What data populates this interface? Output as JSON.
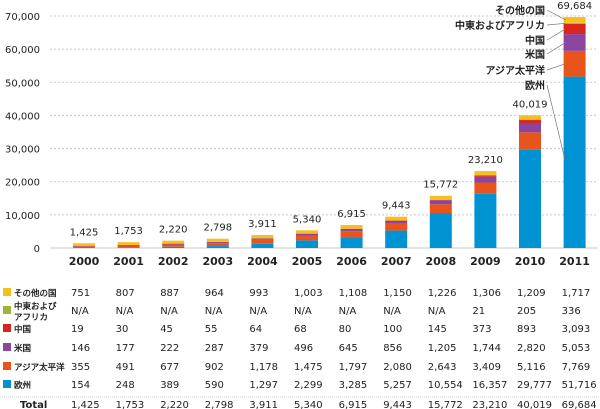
{
  "chart_data": {
    "type": "bar",
    "stacked": true,
    "categories": [
      "2000",
      "2001",
      "2002",
      "2003",
      "2004",
      "2005",
      "2006",
      "2007",
      "2008",
      "2009",
      "2010",
      "2011"
    ],
    "ylim": [
      0,
      70000
    ],
    "yticks": [
      "0",
      "10,000",
      "20,000",
      "30,000",
      "40,000",
      "50,000",
      "60,000",
      "70,000"
    ],
    "ytick_values": [
      0,
      10000,
      20000,
      30000,
      40000,
      50000,
      60000,
      70000
    ],
    "grid": true,
    "series": [
      {
        "name": "欧州",
        "color": "#0093d3",
        "values": [
          154,
          248,
          389,
          590,
          1297,
          2299,
          3285,
          5257,
          10554,
          16357,
          29777,
          51716
        ],
        "labels": [
          "154",
          "248",
          "389",
          "590",
          "1,297",
          "2,299",
          "3,285",
          "5,257",
          "10,554",
          "16,357",
          "29,777",
          "51,716"
        ]
      },
      {
        "name": "アジア太平洋",
        "color": "#e8541c",
        "values": [
          355,
          491,
          677,
          902,
          1178,
          1475,
          1797,
          2080,
          2643,
          3409,
          5116,
          7769
        ],
        "labels": [
          "355",
          "491",
          "677",
          "902",
          "1,178",
          "1,475",
          "1,797",
          "2,080",
          "2,643",
          "3,409",
          "5,116",
          "7,769"
        ]
      },
      {
        "name": "米国",
        "color": "#8b45a0",
        "values": [
          146,
          177,
          222,
          287,
          379,
          496,
          645,
          856,
          1205,
          1744,
          2820,
          5053
        ],
        "labels": [
          "146",
          "177",
          "222",
          "287",
          "379",
          "496",
          "645",
          "856",
          "1,205",
          "1,744",
          "2,820",
          "5,053"
        ]
      },
      {
        "name": "中国",
        "color": "#d8261f",
        "values": [
          19,
          30,
          45,
          55,
          64,
          68,
          80,
          100,
          145,
          373,
          893,
          3093
        ],
        "labels": [
          "19",
          "30",
          "45",
          "55",
          "64",
          "68",
          "80",
          "100",
          "145",
          "373",
          "893",
          "3,093"
        ]
      },
      {
        "name": "中東および\nアフリカ",
        "legend_name": "中東およびアフリカ",
        "color": "#a3b23a",
        "values": [
          null,
          null,
          null,
          null,
          null,
          null,
          null,
          null,
          null,
          21,
          205,
          336
        ],
        "labels": [
          "N/A",
          "N/A",
          "N/A",
          "N/A",
          "N/A",
          "N/A",
          "N/A",
          "N/A",
          "N/A",
          "21",
          "205",
          "336"
        ]
      },
      {
        "name": "その他の国",
        "color": "#f4c01c",
        "values": [
          751,
          807,
          887,
          964,
          993,
          1003,
          1108,
          1150,
          1226,
          1306,
          1209,
          1717
        ],
        "labels": [
          "751",
          "807",
          "887",
          "964",
          "993",
          "1,003",
          "1,108",
          "1,150",
          "1,226",
          "1,306",
          "1,209",
          "1,717"
        ]
      }
    ],
    "totals": [
      1425,
      1753,
      2220,
      2798,
      3911,
      5340,
      6915,
      9443,
      15772,
      23210,
      40019,
      69684
    ],
    "total_labels": [
      "1,425",
      "1,753",
      "2,220",
      "2,798",
      "3,911",
      "5,340",
      "6,915",
      "9,443",
      "15,772",
      "23,210",
      "40,019",
      "69,684"
    ],
    "total_row_label": "Total",
    "annotations": [
      "その他の国",
      "中東およびアフリカ",
      "中国",
      "米国",
      "アジア太平洋",
      "欧州"
    ]
  }
}
